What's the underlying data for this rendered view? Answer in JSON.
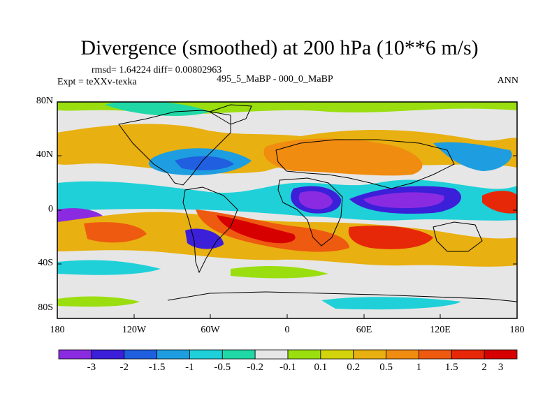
{
  "title": "Divergence (smoothed) at 200 hPa (10**6 m/s)",
  "stats": "rmsd= 1.64224 diff= 0.00802963",
  "experiment": "Expt = teXXv-texka",
  "comparison": "495_5_MaBP - 000_0_MaBP",
  "season": "ANN",
  "lat_labels": [
    "80N",
    "40N",
    "0",
    "40S",
    "80S"
  ],
  "lon_labels": [
    "180",
    "120W",
    "60W",
    "0",
    "60E",
    "120E",
    "180"
  ],
  "colorbar": {
    "colors": [
      "#8a2be2",
      "#3c1fd8",
      "#1f5fe0",
      "#1e9ee0",
      "#1fd0d8",
      "#20d8a6",
      "#e6e6e6",
      "#9ade10",
      "#d4d40c",
      "#e8b010",
      "#f08c10",
      "#ee5a10",
      "#e62808",
      "#d70000"
    ],
    "labels": [
      "-3",
      "-2",
      "-1.5",
      "-1",
      "-0.5",
      "-0.2",
      "-0.1",
      "0.1",
      "0.2",
      "0.5",
      "1",
      "1.5",
      "2",
      "3"
    ]
  }
}
